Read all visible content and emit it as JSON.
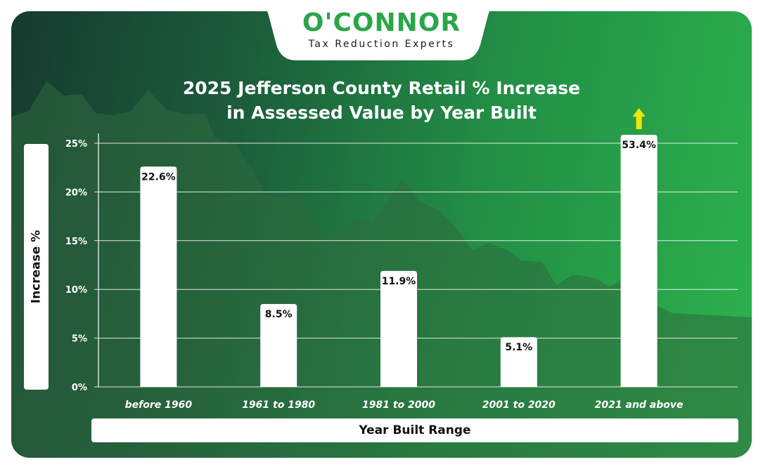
{
  "brand": {
    "name": "O'CONNOR",
    "tagline": "Tax Reduction Experts",
    "color": "#2aa648"
  },
  "chart_data": {
    "type": "bar",
    "title_line1": "2025 Jefferson County Retail % Increase",
    "title_line2": "in Assessed Value by Year Built",
    "xlabel": "Year Built Range",
    "ylabel": "Increase %",
    "categories": [
      "before 1960",
      "1961 to 1980",
      "1981 to 2000",
      "2001 to 2020",
      "2021 and above"
    ],
    "values": [
      22.6,
      8.5,
      11.9,
      5.1,
      53.4
    ],
    "value_labels": [
      "22.6%",
      "8.5%",
      "11.9%",
      "5.1%",
      "53.4%"
    ],
    "ylim": [
      0,
      25
    ],
    "yticks": [
      0,
      5,
      10,
      15,
      20,
      25
    ],
    "ytick_labels": [
      "0%",
      "5%",
      "10%",
      "15%",
      "20%",
      "25%"
    ],
    "clipped_arrow_color": "#f2e600",
    "bar_color": "#ffffff",
    "grid": true,
    "legend": "none"
  }
}
